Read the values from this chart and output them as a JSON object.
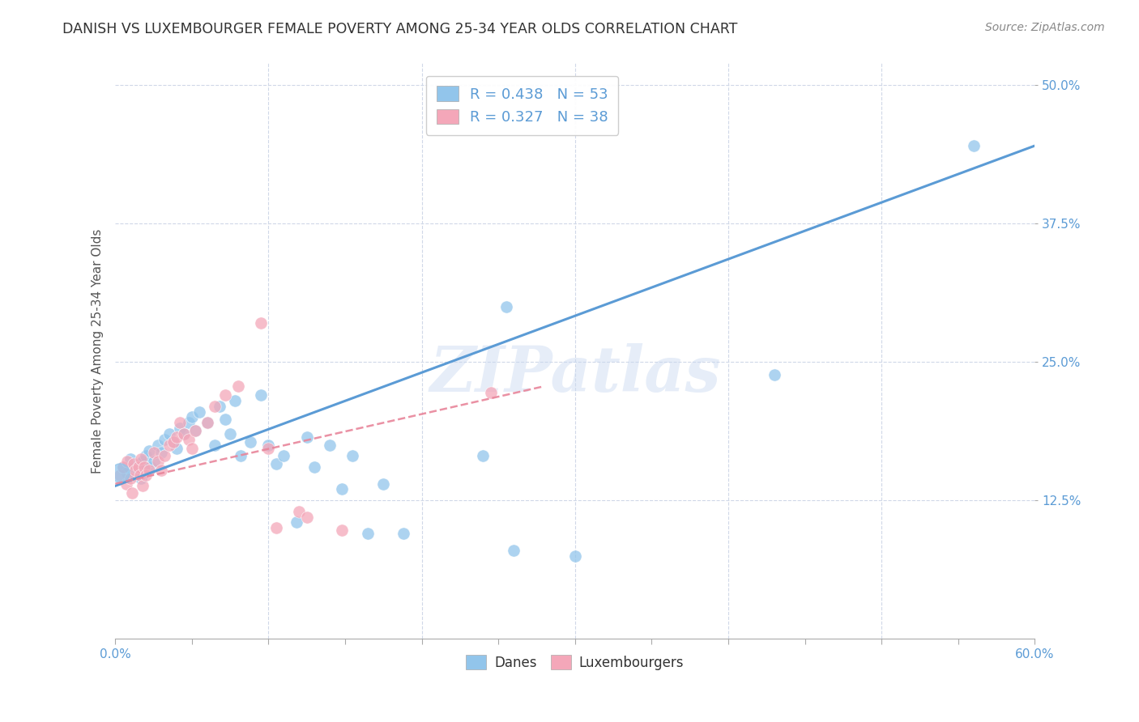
{
  "title": "DANISH VS LUXEMBOURGER FEMALE POVERTY AMONG 25-34 YEAR OLDS CORRELATION CHART",
  "source": "Source: ZipAtlas.com",
  "ylabel": "Female Poverty Among 25-34 Year Olds",
  "xlim": [
    0.0,
    0.6
  ],
  "ylim": [
    0.0,
    0.52
  ],
  "ylabel_ticks": [
    "12.5%",
    "25.0%",
    "37.5%",
    "50.0%"
  ],
  "ylabel_vals": [
    0.125,
    0.25,
    0.375,
    0.5
  ],
  "danes_R": 0.438,
  "danes_N": 53,
  "luxem_R": 0.327,
  "luxem_N": 38,
  "danes_color": "#92C5EB",
  "luxem_color": "#F4A7B9",
  "danes_line_color": "#5B9BD5",
  "luxem_line_color": "#E8859A",
  "danes_scatter": [
    [
      0.005,
      0.155
    ],
    [
      0.008,
      0.15
    ],
    [
      0.01,
      0.162
    ],
    [
      0.012,
      0.155
    ],
    [
      0.013,
      0.148
    ],
    [
      0.015,
      0.152
    ],
    [
      0.016,
      0.158
    ],
    [
      0.017,
      0.145
    ],
    [
      0.018,
      0.16
    ],
    [
      0.019,
      0.153
    ],
    [
      0.02,
      0.165
    ],
    [
      0.022,
      0.17
    ],
    [
      0.023,
      0.155
    ],
    [
      0.025,
      0.16
    ],
    [
      0.028,
      0.175
    ],
    [
      0.03,
      0.168
    ],
    [
      0.032,
      0.18
    ],
    [
      0.035,
      0.185
    ],
    [
      0.038,
      0.178
    ],
    [
      0.04,
      0.172
    ],
    [
      0.042,
      0.19
    ],
    [
      0.045,
      0.185
    ],
    [
      0.048,
      0.195
    ],
    [
      0.05,
      0.2
    ],
    [
      0.052,
      0.188
    ],
    [
      0.055,
      0.205
    ],
    [
      0.06,
      0.195
    ],
    [
      0.065,
      0.175
    ],
    [
      0.068,
      0.21
    ],
    [
      0.072,
      0.198
    ],
    [
      0.075,
      0.185
    ],
    [
      0.078,
      0.215
    ],
    [
      0.082,
      0.165
    ],
    [
      0.088,
      0.178
    ],
    [
      0.095,
      0.22
    ],
    [
      0.1,
      0.175
    ],
    [
      0.105,
      0.158
    ],
    [
      0.11,
      0.165
    ],
    [
      0.118,
      0.105
    ],
    [
      0.125,
      0.182
    ],
    [
      0.13,
      0.155
    ],
    [
      0.14,
      0.175
    ],
    [
      0.148,
      0.135
    ],
    [
      0.155,
      0.165
    ],
    [
      0.165,
      0.095
    ],
    [
      0.175,
      0.14
    ],
    [
      0.188,
      0.095
    ],
    [
      0.24,
      0.165
    ],
    [
      0.255,
      0.3
    ],
    [
      0.26,
      0.08
    ],
    [
      0.3,
      0.075
    ],
    [
      0.43,
      0.238
    ],
    [
      0.56,
      0.445
    ]
  ],
  "luxem_scatter": [
    [
      0.003,
      0.148
    ],
    [
      0.005,
      0.155
    ],
    [
      0.007,
      0.14
    ],
    [
      0.008,
      0.16
    ],
    [
      0.01,
      0.145
    ],
    [
      0.011,
      0.132
    ],
    [
      0.012,
      0.158
    ],
    [
      0.013,
      0.152
    ],
    [
      0.015,
      0.155
    ],
    [
      0.016,
      0.148
    ],
    [
      0.017,
      0.162
    ],
    [
      0.018,
      0.138
    ],
    [
      0.019,
      0.155
    ],
    [
      0.02,
      0.148
    ],
    [
      0.022,
      0.152
    ],
    [
      0.025,
      0.168
    ],
    [
      0.028,
      0.16
    ],
    [
      0.03,
      0.152
    ],
    [
      0.032,
      0.165
    ],
    [
      0.035,
      0.175
    ],
    [
      0.038,
      0.178
    ],
    [
      0.04,
      0.182
    ],
    [
      0.042,
      0.195
    ],
    [
      0.045,
      0.185
    ],
    [
      0.048,
      0.18
    ],
    [
      0.05,
      0.172
    ],
    [
      0.052,
      0.188
    ],
    [
      0.06,
      0.195
    ],
    [
      0.065,
      0.21
    ],
    [
      0.072,
      0.22
    ],
    [
      0.08,
      0.228
    ],
    [
      0.095,
      0.285
    ],
    [
      0.1,
      0.172
    ],
    [
      0.105,
      0.1
    ],
    [
      0.12,
      0.115
    ],
    [
      0.125,
      0.11
    ],
    [
      0.148,
      0.098
    ],
    [
      0.245,
      0.222
    ]
  ],
  "danes_trendline": [
    [
      0.0,
      0.138
    ],
    [
      0.6,
      0.445
    ]
  ],
  "luxem_trendline": [
    [
      0.0,
      0.14
    ],
    [
      0.28,
      0.228
    ]
  ],
  "watermark": "ZIPatlas",
  "background_color": "#ffffff",
  "grid_color": "#d0d8e8",
  "title_color": "#333333",
  "source_color": "#888888",
  "tick_color": "#5B9BD5"
}
